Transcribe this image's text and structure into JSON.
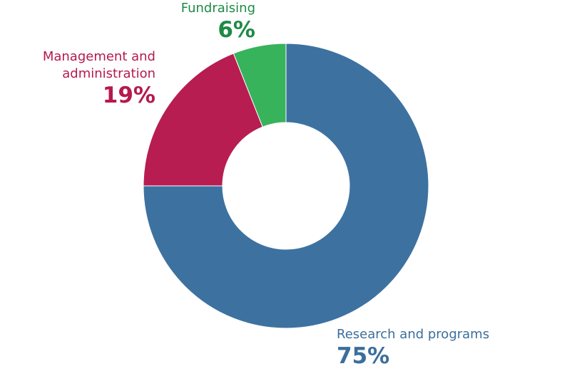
{
  "chart_data": {
    "type": "donut",
    "categories": [
      "Research and programs",
      "Management and administration",
      "Fundraising"
    ],
    "values": [
      75,
      19,
      6
    ],
    "value_labels": [
      "75%",
      "19%",
      "6%"
    ],
    "colors": [
      "#3d72a0",
      "#b71d51",
      "#37b35c"
    ],
    "label_colors": [
      "#3b6e9b",
      "#b5194f",
      "#1e8a45"
    ]
  }
}
